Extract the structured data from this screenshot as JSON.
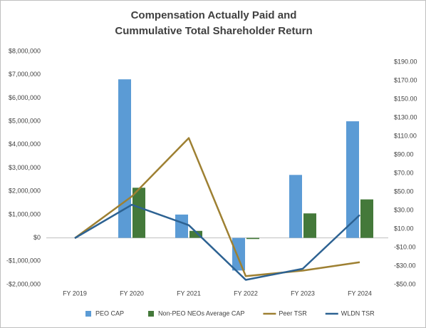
{
  "chart_data": {
    "type": "bar",
    "title": [
      "Compensation Actually Paid and",
      "Cummulative Total Shareholder Return"
    ],
    "categories": [
      "FY 2019",
      "FY 2020",
      "FY 2021",
      "FY 2022",
      "FY 2023",
      "FY 2024"
    ],
    "series": [
      {
        "name": "PEO CAP",
        "type": "bar",
        "color": "#5b9bd5",
        "values": [
          0,
          6800000,
          1000000,
          -1400000,
          2700000,
          5000000
        ]
      },
      {
        "name": "Non-PEO NEOs Average CAP",
        "type": "bar",
        "color": "#44793a",
        "values": [
          0,
          2150000,
          300000,
          -50000,
          1050000,
          1650000
        ]
      },
      {
        "name": "Peer TSR",
        "type": "line",
        "axis": "y2",
        "color": "#9e8032",
        "values": [
          0,
          45,
          108,
          -41,
          -35,
          -26
        ]
      },
      {
        "name": "WLDN TSR",
        "type": "line",
        "axis": "y2",
        "color": "#2d6292",
        "values": [
          0,
          36,
          14,
          -45,
          -33,
          25
        ]
      }
    ],
    "ylim": [
      -2000000,
      8000000
    ],
    "yticks": [
      {
        "value": -2000000,
        "label": "-$2,000,000"
      },
      {
        "value": -1000000,
        "label": "-$1,000,000"
      },
      {
        "value": 0,
        "label": "$0"
      },
      {
        "value": 1000000,
        "label": "$1,000,000"
      },
      {
        "value": 2000000,
        "label": "$2,000,000"
      },
      {
        "value": 3000000,
        "label": "$3,000,000"
      },
      {
        "value": 4000000,
        "label": "$4,000,000"
      },
      {
        "value": 5000000,
        "label": "$5,000,000"
      },
      {
        "value": 6000000,
        "label": "$6,000,000"
      },
      {
        "value": 7000000,
        "label": "$7,000,000"
      },
      {
        "value": 8000000,
        "label": "$8,000,000"
      }
    ],
    "y2lim": [
      -50,
      201.5
    ],
    "y2ticks": [
      {
        "value": -50,
        "label": "-$50.00"
      },
      {
        "value": -30,
        "label": "-$30.00"
      },
      {
        "value": -10,
        "label": "-$10.00"
      },
      {
        "value": 10,
        "label": "$10.00"
      },
      {
        "value": 30,
        "label": "$30.00"
      },
      {
        "value": 50,
        "label": "$50.00"
      },
      {
        "value": 70,
        "label": "$70.00"
      },
      {
        "value": 90,
        "label": "$90.00"
      },
      {
        "value": 110,
        "label": "$110.00"
      },
      {
        "value": 130,
        "label": "$130.00"
      },
      {
        "value": 150,
        "label": "$150.00"
      },
      {
        "value": 170,
        "label": "$170.00"
      },
      {
        "value": 190,
        "label": "$190.00"
      }
    ],
    "grid": false,
    "legend": "bottom"
  }
}
